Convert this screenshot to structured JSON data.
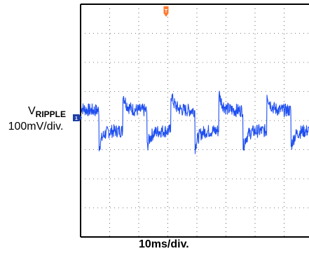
{
  "chart_data": {
    "type": "line",
    "title": "",
    "xlabel": "10ms/div.",
    "ylabel_main": "V",
    "ylabel_sub": "RIPPLE",
    "ylabel_scale": "100mV/div.",
    "time_per_div_ms": 10,
    "volts_per_div_mV": 100,
    "x_divisions_visible": 8,
    "y_divisions": 8,
    "grid": true,
    "trigger_marker": "T",
    "channel_marker": "1",
    "colors": {
      "trace": "#1f4ff0",
      "trigger": "#ff7a30",
      "channel": "#1e3fa8",
      "frame": "#000000",
      "grid": "#000000"
    },
    "series": [
      {
        "period_ms": 16.5,
        "phase_ms": 0,
        "high_level_mV": 35,
        "low_level_mV": -35,
        "overshoot_mV": 95,
        "band_width_mV": 45
      }
    ]
  }
}
